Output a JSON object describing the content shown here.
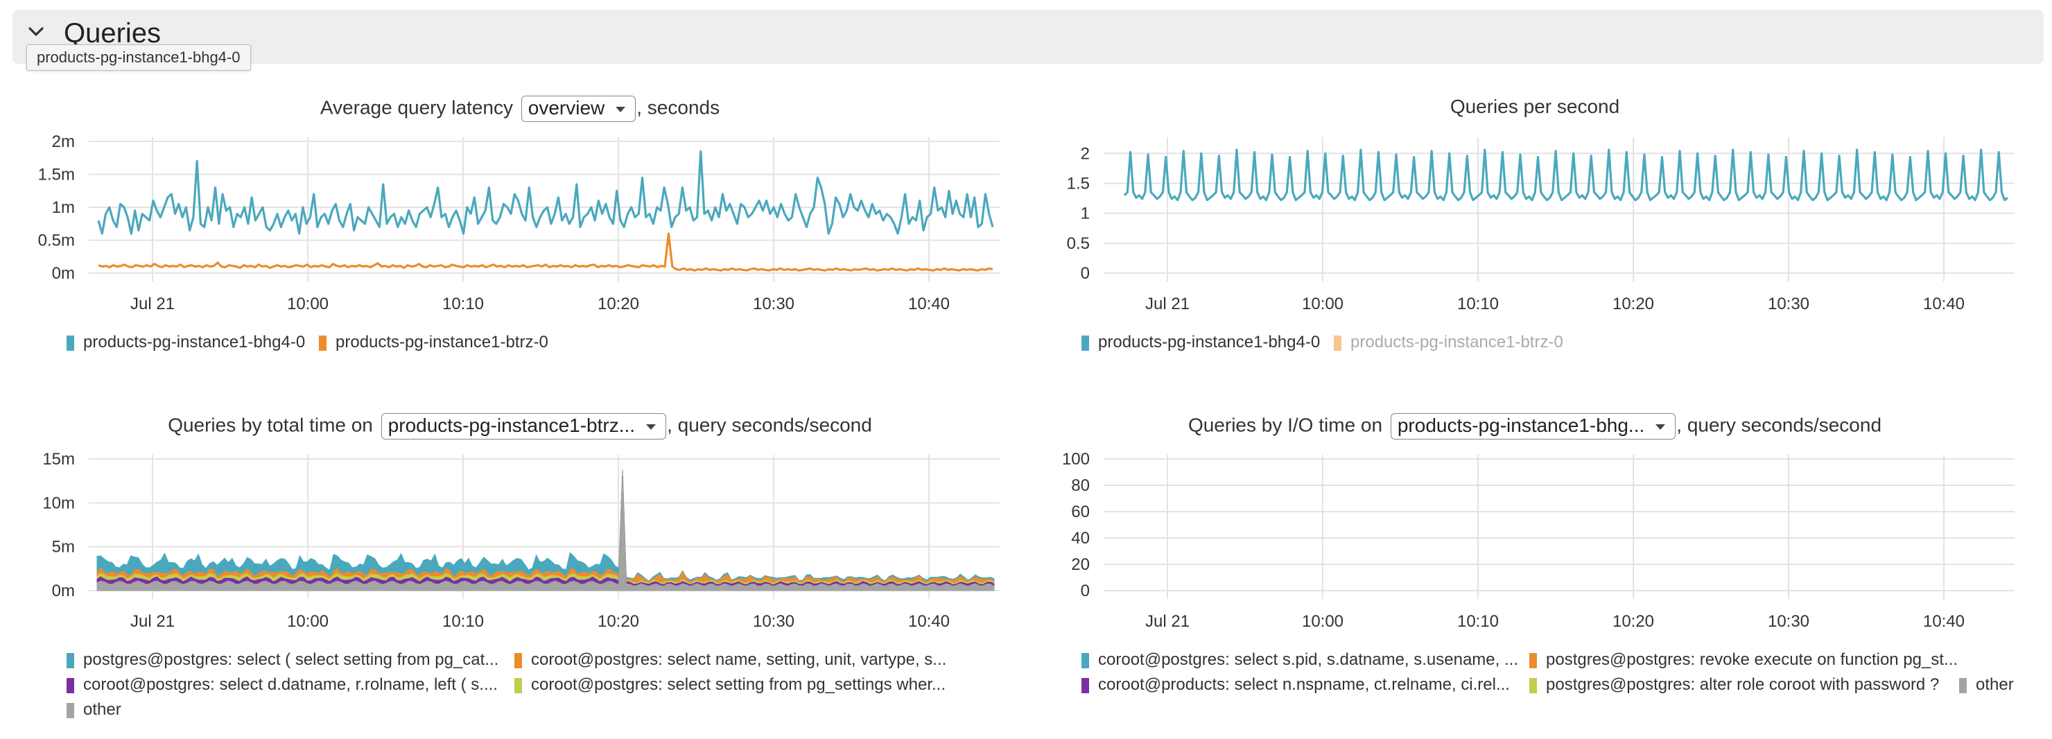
{
  "section": {
    "title": "Queries",
    "tooltip": "products-pg-instance1-bhg4-0"
  },
  "icons": {
    "collapse": "chevron-down-icon",
    "dropdown": "caret-down-icon"
  },
  "colors": {
    "blue": "#4aa8be",
    "orange": "#ec8c2c",
    "purple": "#7b2fa5",
    "lime": "#c2cd4c",
    "gray": "#a4a4a4",
    "grid": "#e3e3e3",
    "faded_orange": "#f6c690"
  },
  "panels": [
    {
      "id": "latency",
      "title_before": "Average query latency",
      "select_value": "overview",
      "title_after": ", seconds",
      "legend": [
        {
          "label": "products-pg-instance1-bhg4-0",
          "color": "#4aa8be",
          "muted": false
        },
        {
          "label": "products-pg-instance1-btrz-0",
          "color": "#ec8c2c",
          "muted": false
        }
      ]
    },
    {
      "id": "qps",
      "title_before": "Queries per second",
      "select_value": "",
      "title_after": "",
      "legend": [
        {
          "label": "products-pg-instance1-bhg4-0",
          "color": "#4aa8be",
          "muted": false
        },
        {
          "label": "products-pg-instance1-btrz-0",
          "color": "#f6c690",
          "muted": true
        }
      ]
    },
    {
      "id": "total_time",
      "title_before": "Queries by total time on",
      "select_value": "products-pg-instance1-btrz...",
      "title_after": ", query seconds/second",
      "legend": [
        {
          "label": "postgres@postgres: select ( select setting from pg_cat...",
          "color": "#4aa8be",
          "muted": false
        },
        {
          "label": "coroot@postgres: select name, setting, unit, vartype, s...",
          "color": "#ec8c2c",
          "muted": false
        },
        {
          "label": "coroot@postgres: select d.datname, r.rolname, left ( s....",
          "color": "#7b2fa5",
          "muted": false
        },
        {
          "label": "coroot@postgres: select setting from pg_settings wher...",
          "color": "#c2cd4c",
          "muted": false
        },
        {
          "label": "other",
          "color": "#a4a4a4",
          "muted": false
        }
      ]
    },
    {
      "id": "io_time",
      "title_before": "Queries by I/O time on",
      "select_value": "products-pg-instance1-bhg...",
      "title_after": ", query seconds/second",
      "legend": [
        {
          "label": "coroot@postgres: select s.pid, s.datname, s.usename, ...",
          "color": "#4aa8be",
          "muted": false
        },
        {
          "label": "postgres@postgres: revoke execute on function pg_st...",
          "color": "#ec8c2c",
          "muted": false
        },
        {
          "label": "coroot@products: select n.nspname, ct.relname, ci.rel...",
          "color": "#7b2fa5",
          "muted": false
        },
        {
          "label": "postgres@postgres: alter role coroot with password ?",
          "color": "#c2cd4c",
          "muted": false
        },
        {
          "label": "other",
          "color": "#a4a4a4",
          "muted": false
        }
      ]
    }
  ],
  "chart_data": [
    {
      "type": "line",
      "title": "Average query latency overview, seconds",
      "x_ticks": [
        "Jul 21",
        "10:00",
        "10:10",
        "10:20",
        "10:30",
        "10:40"
      ],
      "y_ticks": [
        "2m",
        "1.5m",
        "1m",
        "0.5m",
        "0m"
      ],
      "ylim": [
        0,
        2
      ],
      "unit": "ms",
      "series": [
        {
          "name": "products-pg-instance1-bhg4-0",
          "color": "#4aa8be",
          "values": [
            0.8,
            0.6,
            0.9,
            1.0,
            0.8,
            0.7,
            1.05,
            1.0,
            0.85,
            0.6,
            0.95,
            0.65,
            0.9,
            0.85,
            0.8,
            1.1,
            0.95,
            0.85,
            1.0,
            1.15,
            1.2,
            0.9,
            1.05,
            0.85,
            1.0,
            0.65,
            0.85,
            1.7,
            0.75,
            0.7,
            1.0,
            0.8,
            1.3,
            0.75,
            1.2,
            0.95,
            1.0,
            0.7,
            0.9,
            0.85,
            1.0,
            0.75,
            1.15,
            0.8,
            0.9,
            1.0,
            0.7,
            0.65,
            0.75,
            0.9,
            0.7,
            0.85,
            0.95,
            0.8,
            0.9,
            0.6,
            1.0,
            0.75,
            0.85,
            1.2,
            0.7,
            0.85,
            0.9,
            0.75,
            0.95,
            1.05,
            0.8,
            0.7,
            0.9,
            1.05,
            0.65,
            0.85,
            0.8,
            0.75,
            1.0,
            0.9,
            0.8,
            0.7,
            1.35,
            0.75,
            0.85,
            0.9,
            0.7,
            0.85,
            0.75,
            0.95,
            0.8,
            0.7,
            0.9,
            0.95,
            1.0,
            0.85,
            1.05,
            1.3,
            0.85,
            0.9,
            0.7,
            0.85,
            0.95,
            0.8,
            0.6,
            1.0,
            0.9,
            1.15,
            0.75,
            0.85,
            0.95,
            1.3,
            0.8,
            0.75,
            0.85,
            1.05,
            1.0,
            0.9,
            1.2,
            1.1,
            0.9,
            0.8,
            1.3,
            0.85,
            0.7,
            0.85,
            0.95,
            1.0,
            0.75,
            0.9,
            1.15,
            0.8,
            0.9,
            0.75,
            0.85,
            1.35,
            0.7,
            0.85,
            0.9,
            1.0,
            0.8,
            1.1,
            0.9,
            1.05,
            0.85,
            0.75,
            1.25,
            0.8,
            0.7,
            0.9,
            1.0,
            0.85,
            0.9,
            1.45,
            0.85,
            0.9,
            0.75,
            1.0,
            0.95,
            1.3,
            1.05,
            0.7,
            0.85,
            0.9,
            1.3,
            0.95,
            1.0,
            0.8,
            0.85,
            1.85,
            0.9,
            0.95,
            0.8,
            1.0,
            0.85,
            1.2,
            0.95,
            1.05,
            0.9,
            0.75,
            1.05,
            1.0,
            0.85,
            0.9,
            1.0,
            1.1,
            0.95,
            1.1,
            0.9,
            1.0,
            0.85,
            1.05,
            0.9,
            0.8,
            0.85,
            1.2,
            1.0,
            0.85,
            0.7,
            0.9,
            1.0,
            1.45,
            1.3,
            1.05,
            0.6,
            0.75,
            1.15,
            1.05,
            0.85,
            0.95,
            1.2,
            1.0,
            0.95,
            1.1,
            0.95,
            0.85,
            1.05,
            0.9,
            0.95,
            0.8,
            0.9,
            0.85,
            0.75,
            0.6,
            0.85,
            1.2,
            0.75,
            0.85,
            0.8,
            1.1,
            0.65,
            0.85,
            0.9,
            1.3,
            0.95,
            1.0,
            0.85,
            1.25,
            0.9,
            1.1,
            0.9,
            0.85,
            1.2,
            0.85,
            1.15,
            0.7,
            0.75,
            1.2,
            0.9,
            0.7
          ]
        },
        {
          "name": "products-pg-instance1-btrz-0",
          "color": "#ec8c2c",
          "values": [
            0.12,
            0.1,
            0.11,
            0.09,
            0.12,
            0.1,
            0.11,
            0.13,
            0.1,
            0.09,
            0.12,
            0.11,
            0.1,
            0.12,
            0.1,
            0.14,
            0.11,
            0.09,
            0.12,
            0.1,
            0.11,
            0.1,
            0.13,
            0.09,
            0.11,
            0.12,
            0.1,
            0.11,
            0.09,
            0.12,
            0.1,
            0.11,
            0.16,
            0.1,
            0.09,
            0.12,
            0.11,
            0.1,
            0.08,
            0.12,
            0.1,
            0.11,
            0.09,
            0.13,
            0.1,
            0.11,
            0.08,
            0.1,
            0.12,
            0.1,
            0.11,
            0.09,
            0.1,
            0.12,
            0.11,
            0.1,
            0.13,
            0.09,
            0.11,
            0.1,
            0.12,
            0.1,
            0.09,
            0.14,
            0.11,
            0.1,
            0.12,
            0.09,
            0.11,
            0.1,
            0.12,
            0.1,
            0.11,
            0.09,
            0.12,
            0.15,
            0.1,
            0.11,
            0.09,
            0.12,
            0.1,
            0.11,
            0.08,
            0.12,
            0.1,
            0.11,
            0.14,
            0.1,
            0.09,
            0.12,
            0.1,
            0.11,
            0.12,
            0.09,
            0.1,
            0.13,
            0.11,
            0.1,
            0.09,
            0.12,
            0.1,
            0.11,
            0.1,
            0.12,
            0.09,
            0.11,
            0.13,
            0.1,
            0.11,
            0.09,
            0.12,
            0.1,
            0.11,
            0.1,
            0.12,
            0.09,
            0.1,
            0.11,
            0.12,
            0.1,
            0.13,
            0.09,
            0.11,
            0.1,
            0.12,
            0.1,
            0.11,
            0.09,
            0.12,
            0.1,
            0.11,
            0.1,
            0.12,
            0.13,
            0.09,
            0.11,
            0.1,
            0.12,
            0.1,
            0.11,
            0.09,
            0.1,
            0.12,
            0.11,
            0.1,
            0.09,
            0.12,
            0.11,
            0.1,
            0.12,
            0.09,
            0.11,
            0.1,
            0.6,
            0.1,
            0.06,
            0.05,
            0.07,
            0.05,
            0.06,
            0.04,
            0.06,
            0.05,
            0.07,
            0.05,
            0.06,
            0.05,
            0.04,
            0.06,
            0.05,
            0.07,
            0.05,
            0.06,
            0.05,
            0.04,
            0.06,
            0.07,
            0.05,
            0.06,
            0.05,
            0.04,
            0.06,
            0.05,
            0.07,
            0.05,
            0.06,
            0.05,
            0.06,
            0.04,
            0.05,
            0.06,
            0.07,
            0.05,
            0.06,
            0.05,
            0.04,
            0.06,
            0.05,
            0.07,
            0.05,
            0.06,
            0.05,
            0.04,
            0.06,
            0.05,
            0.06,
            0.07,
            0.05,
            0.06,
            0.04,
            0.05,
            0.06,
            0.05,
            0.07,
            0.05,
            0.06,
            0.05,
            0.04,
            0.06,
            0.05,
            0.07,
            0.05,
            0.06,
            0.05,
            0.04,
            0.06,
            0.05,
            0.07,
            0.05,
            0.06,
            0.05,
            0.04,
            0.06,
            0.05,
            0.06,
            0.05,
            0.04,
            0.06,
            0.05,
            0.07,
            0.06
          ]
        }
      ]
    },
    {
      "type": "line",
      "title": "Queries per second",
      "x_ticks": [
        "Jul 21",
        "10:00",
        "10:10",
        "10:20",
        "10:30",
        "10:40"
      ],
      "y_ticks": [
        "2",
        "1.5",
        "1",
        "0.5",
        "0"
      ],
      "ylim": [
        0,
        2.2
      ],
      "series": [
        {
          "name": "products-pg-instance1-bhg4-0",
          "color": "#4aa8be",
          "pattern": {
            "base": 1.3,
            "peak": 2.0,
            "period_points": 6,
            "total_points": 300
          }
        }
      ]
    },
    {
      "type": "area",
      "title": "Queries by total time on products-pg-instance1-btrz..., query seconds/second",
      "x_ticks": [
        "Jul 21",
        "10:00",
        "10:10",
        "10:20",
        "10:30",
        "10:40"
      ],
      "y_ticks": [
        "15m",
        "10m",
        "5m",
        "0m"
      ],
      "ylim": [
        0,
        15
      ],
      "unit": "ms",
      "spike": {
        "index": 140,
        "value": 12.8
      },
      "series_names": [
        "postgres@postgres: select ( select setting from pg_cat...",
        "coroot@postgres: select name, setting, unit, vartype, s...",
        "coroot@postgres: select d.datname, r.rolname, left ( s....",
        "coroot@postgres: select setting from pg_settings wher...",
        "other"
      ]
    },
    {
      "type": "line",
      "title": "Queries by I/O time on products-pg-instance1-bhg..., query seconds/second",
      "x_ticks": [
        "Jul 21",
        "10:00",
        "10:10",
        "10:20",
        "10:30",
        "10:40"
      ],
      "y_ticks": [
        "100",
        "80",
        "60",
        "40",
        "20",
        "0"
      ],
      "ylim": [
        0,
        100
      ],
      "series": []
    }
  ]
}
